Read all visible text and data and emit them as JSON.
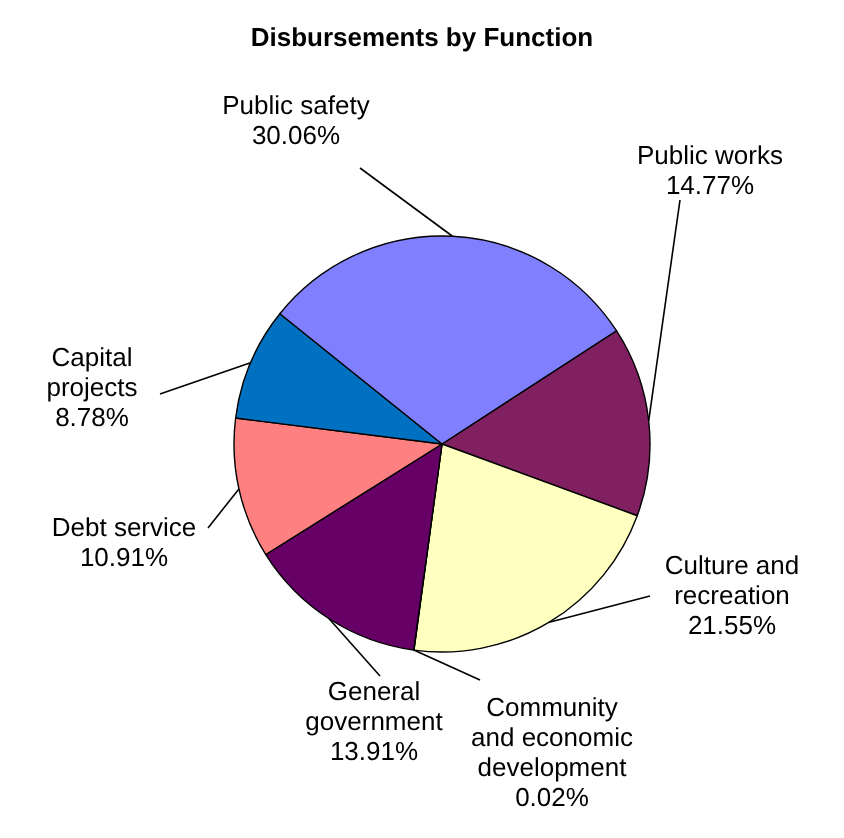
{
  "chart_data": {
    "type": "pie",
    "title": "Disbursements by Function",
    "categories": [
      "Public works",
      "Culture and recreation",
      "Community and economic development",
      "General government",
      "Debt service",
      "Capital projects",
      "Public safety"
    ],
    "values": [
      14.77,
      21.55,
      0.02,
      13.91,
      10.91,
      8.78,
      30.06
    ],
    "value_labels": [
      "14.77%",
      "21.55%",
      "0.02%",
      "13.91%",
      "10.91%",
      "8.78%",
      "30.06%"
    ],
    "colors": [
      "#802060",
      "#ffffc0",
      "#a0e0e0",
      "#660066",
      "#ff8080",
      "#0070c0",
      "#8080ff"
    ]
  }
}
